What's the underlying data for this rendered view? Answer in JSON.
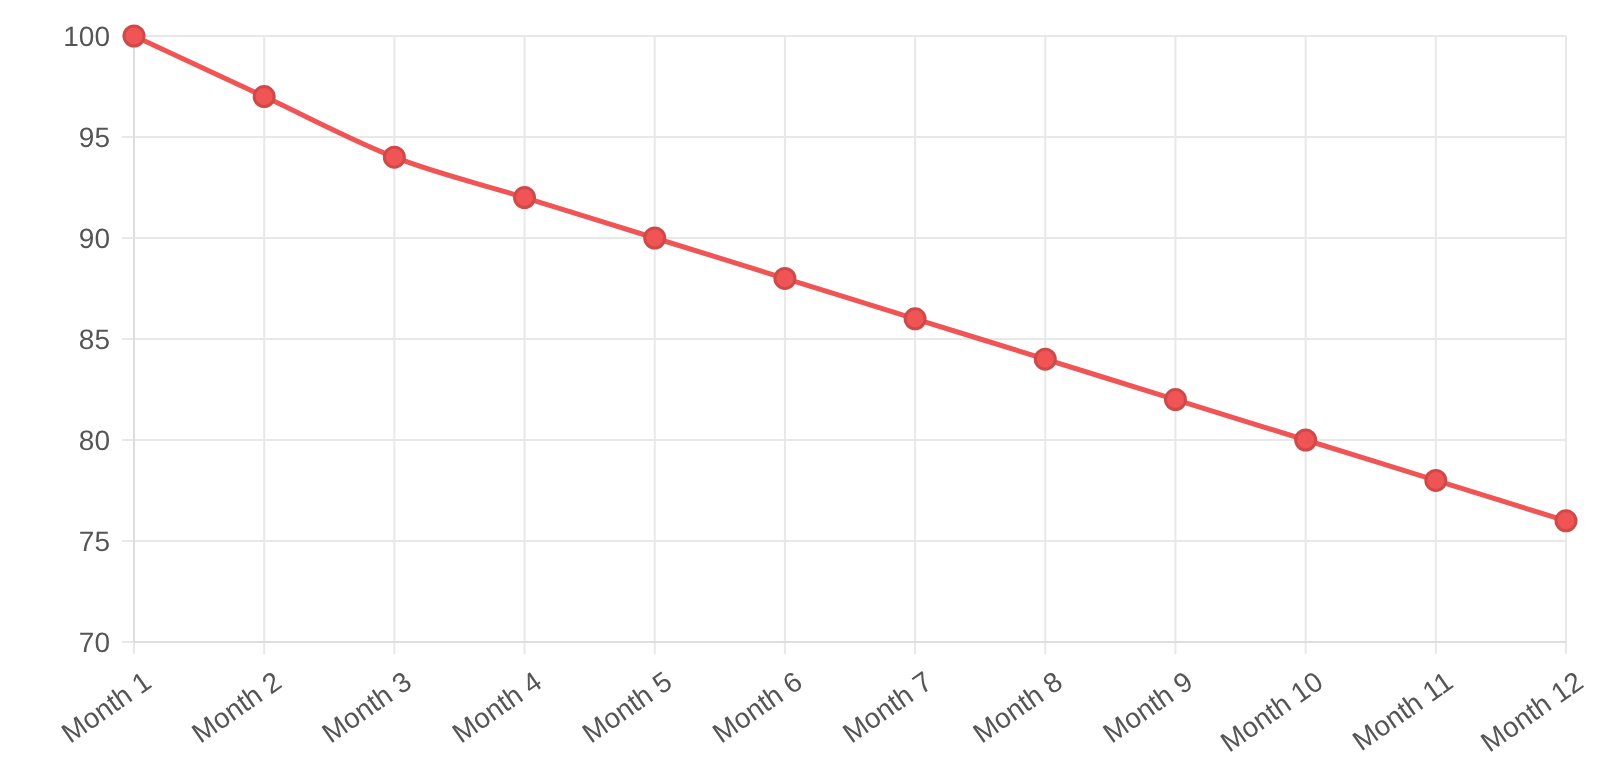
{
  "chart_data": {
    "type": "line",
    "categories": [
      "Month 1",
      "Month 2",
      "Month 3",
      "Month 4",
      "Month 5",
      "Month 6",
      "Month 7",
      "Month 8",
      "Month 9",
      "Month 10",
      "Month 11",
      "Month 12"
    ],
    "series": [
      {
        "color": "#f05454",
        "values": [
          100,
          97,
          94,
          92,
          90,
          88,
          86,
          84,
          82,
          80,
          78,
          76
        ]
      }
    ],
    "ylim": [
      70,
      100
    ],
    "yticks": [
      70,
      75,
      80,
      85,
      90,
      95,
      100
    ],
    "grid": true,
    "marker": "circle",
    "line_style": "solid"
  }
}
